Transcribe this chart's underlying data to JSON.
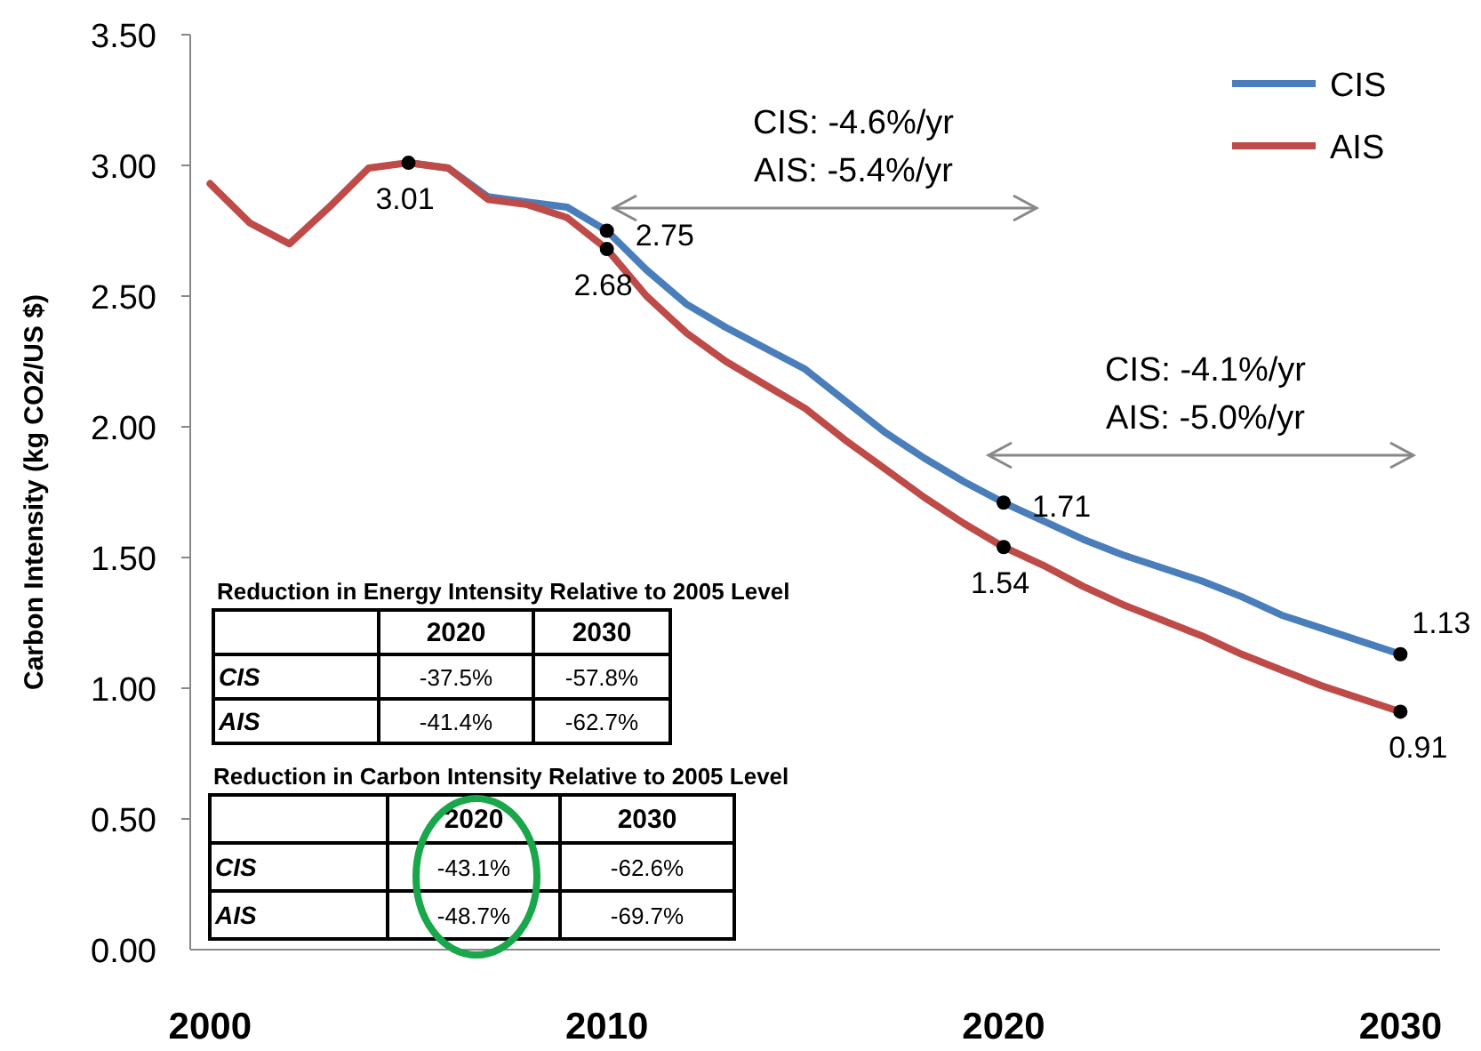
{
  "chart_data": {
    "type": "line",
    "ylabel": "Carbon Intensity (kg CO2/US $)",
    "x": [
      2000,
      2001,
      2002,
      2003,
      2004,
      2005,
      2006,
      2007,
      2008,
      2009,
      2010,
      2011,
      2012,
      2013,
      2014,
      2015,
      2016,
      2017,
      2018,
      2019,
      2020,
      2021,
      2022,
      2023,
      2024,
      2025,
      2026,
      2027,
      2028,
      2029,
      2030
    ],
    "series": [
      {
        "name": "CIS",
        "color": "#4a7ebb",
        "values": [
          null,
          null,
          null,
          null,
          null,
          3.01,
          2.99,
          2.88,
          2.86,
          2.84,
          2.75,
          2.6,
          2.47,
          2.38,
          2.3,
          2.22,
          2.1,
          1.98,
          1.88,
          1.79,
          1.71,
          1.64,
          1.57,
          1.51,
          1.46,
          1.41,
          1.35,
          1.28,
          1.23,
          1.18,
          1.13
        ],
        "value_labels": [
          null,
          null,
          null,
          null,
          null,
          null,
          null,
          null,
          null,
          null,
          "2.75",
          null,
          null,
          null,
          null,
          null,
          null,
          null,
          null,
          null,
          "1.71",
          null,
          null,
          null,
          null,
          null,
          null,
          null,
          null,
          null,
          "1.13"
        ]
      },
      {
        "name": "AIS",
        "color": "#be4b48",
        "values": [
          2.93,
          2.78,
          2.7,
          2.84,
          2.99,
          3.01,
          2.99,
          2.87,
          2.85,
          2.8,
          2.68,
          2.5,
          2.36,
          2.25,
          2.16,
          2.07,
          1.95,
          1.84,
          1.73,
          1.63,
          1.54,
          1.47,
          1.39,
          1.32,
          1.26,
          1.2,
          1.13,
          1.07,
          1.01,
          0.96,
          0.91
        ],
        "value_labels": [
          null,
          null,
          null,
          null,
          null,
          "3.01",
          null,
          null,
          null,
          null,
          "2.68",
          null,
          null,
          null,
          null,
          null,
          null,
          null,
          null,
          null,
          "1.54",
          null,
          null,
          null,
          null,
          null,
          null,
          null,
          null,
          null,
          "0.91"
        ]
      }
    ],
    "xlim": [
      1999.5,
      2031
    ],
    "xticks": [
      2000,
      2010,
      2020,
      2030
    ],
    "ylim": [
      0,
      3.5
    ],
    "yticks": [
      {
        "value": 0,
        "label": "0.00"
      },
      {
        "value": 0.5,
        "label": "0.50"
      },
      {
        "value": 1,
        "label": "1.00"
      },
      {
        "value": 1.5,
        "label": "1.50"
      },
      {
        "value": 2,
        "label": "2.00"
      },
      {
        "value": 2.5,
        "label": "2.50"
      },
      {
        "value": 3,
        "label": "3.00"
      },
      {
        "value": 3.5,
        "label": "3.50"
      }
    ],
    "grid": false,
    "legend": "top right",
    "annotations": [
      "CIS: -4.6%/yr\nAIS: -5.4%/yr",
      "CIS: -4.1%/yr\nAIS: -5.0%/yr",
      "Reduction in Energy Intensity Relative to 2005 Level",
      "2020",
      "2030",
      "CIS",
      "-37.5%",
      "-57.8%",
      "AIS",
      "-41.4%",
      "-62.7%",
      "Reduction in Carbon Intensity Relative to 2005 Level",
      "2020",
      "2030",
      "CIS",
      "-43.1%",
      "-62.6%",
      "AIS",
      "-48.7%",
      "-69.7%"
    ]
  }
}
